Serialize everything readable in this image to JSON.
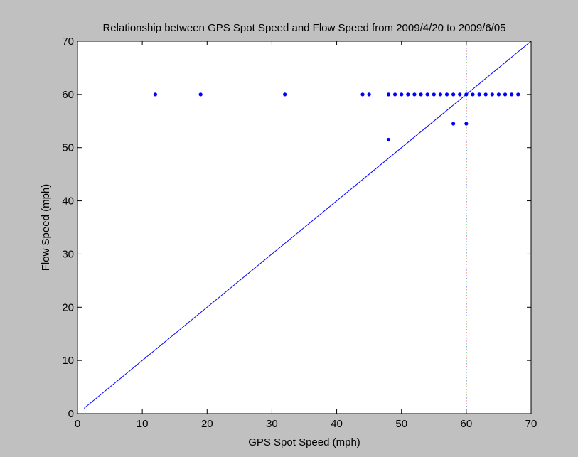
{
  "colors": {
    "figure_bg": "#c0c0c0",
    "axes_bg": "#ffffff",
    "series": "#0000ff",
    "reference_dots": [
      "#ff0000",
      "#00aa00",
      "#0000ff"
    ]
  },
  "chart_data": {
    "type": "scatter",
    "title": "Relationship between GPS Spot Speed and Flow Speed from 2009/4/20 to 2009/6/05",
    "xlabel": "GPS Spot Speed (mph)",
    "ylabel": "Flow Speed (mph)",
    "xlim": [
      0,
      70
    ],
    "ylim": [
      0,
      70
    ],
    "xticks": [
      0,
      10,
      20,
      30,
      40,
      50,
      60,
      70
    ],
    "yticks": [
      0,
      10,
      20,
      30,
      40,
      50,
      60,
      70
    ],
    "grid": false,
    "points": [
      {
        "x": 12,
        "y": 60
      },
      {
        "x": 19,
        "y": 60
      },
      {
        "x": 32,
        "y": 60
      },
      {
        "x": 44,
        "y": 60
      },
      {
        "x": 45,
        "y": 60
      },
      {
        "x": 48,
        "y": 60
      },
      {
        "x": 49,
        "y": 60
      },
      {
        "x": 50,
        "y": 60
      },
      {
        "x": 51,
        "y": 60
      },
      {
        "x": 52,
        "y": 60
      },
      {
        "x": 53,
        "y": 60
      },
      {
        "x": 54,
        "y": 60
      },
      {
        "x": 55,
        "y": 60
      },
      {
        "x": 56,
        "y": 60
      },
      {
        "x": 57,
        "y": 60
      },
      {
        "x": 58,
        "y": 60
      },
      {
        "x": 59,
        "y": 60
      },
      {
        "x": 60,
        "y": 60
      },
      {
        "x": 61,
        "y": 60
      },
      {
        "x": 62,
        "y": 60
      },
      {
        "x": 63,
        "y": 60
      },
      {
        "x": 64,
        "y": 60
      },
      {
        "x": 65,
        "y": 60
      },
      {
        "x": 66,
        "y": 60
      },
      {
        "x": 67,
        "y": 60
      },
      {
        "x": 68,
        "y": 60
      },
      {
        "x": 48,
        "y": 51.5
      },
      {
        "x": 58,
        "y": 54.5
      },
      {
        "x": 60,
        "y": 54.5
      }
    ],
    "reference_line": {
      "x": [
        1,
        70
      ],
      "y": [
        1,
        70
      ]
    },
    "vertical_marker": {
      "x": 60
    }
  }
}
